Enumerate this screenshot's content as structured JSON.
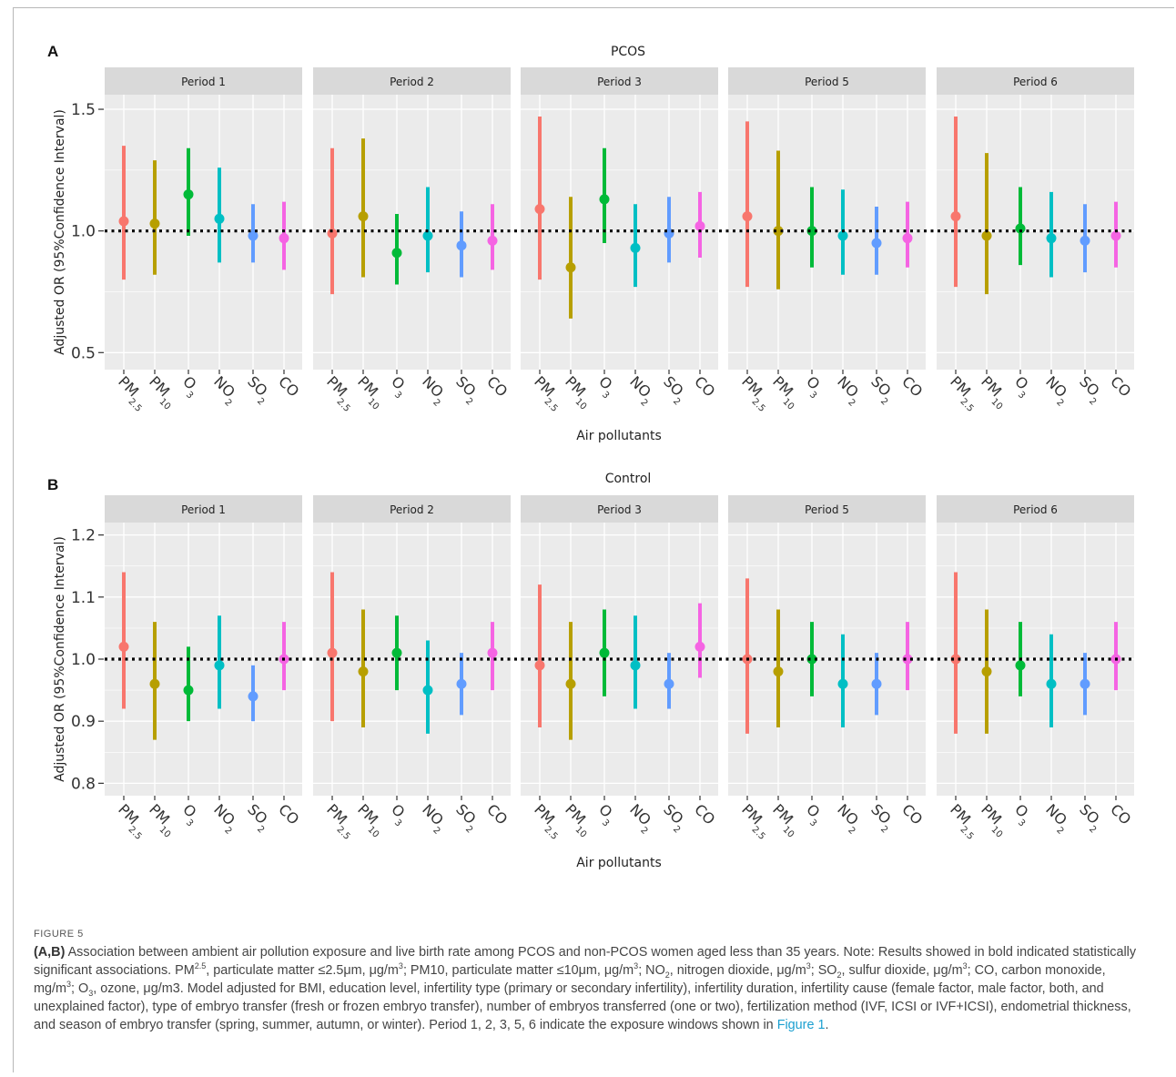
{
  "chart_data": [
    {
      "type": "scatter",
      "panel_letter": "A",
      "title": "PCOS",
      "xlabel": "Air pollutants",
      "ylabel": "Adjusted OR (95%Confidence Interval)",
      "ylim": [
        0.43,
        1.56
      ],
      "yticks": [
        0.5,
        1.0,
        1.5
      ],
      "ytick_labels": [
        "0.5",
        "1.0",
        "1.5"
      ],
      "reference_line": 1.0,
      "pollutants": [
        "PM2.5",
        "PM10",
        "O3",
        "NO2",
        "SO2",
        "CO"
      ],
      "facets": [
        {
          "name": "Period 1",
          "or": [
            1.04,
            1.03,
            1.15,
            1.05,
            0.98,
            0.97
          ],
          "lower": [
            0.8,
            0.82,
            0.98,
            0.87,
            0.87,
            0.84
          ],
          "upper": [
            1.35,
            1.29,
            1.34,
            1.26,
            1.11,
            1.12
          ]
        },
        {
          "name": "Period 2",
          "or": [
            0.99,
            1.06,
            0.91,
            0.98,
            0.94,
            0.96
          ],
          "lower": [
            0.74,
            0.81,
            0.78,
            0.83,
            0.81,
            0.84
          ],
          "upper": [
            1.34,
            1.38,
            1.07,
            1.18,
            1.08,
            1.11
          ]
        },
        {
          "name": "Period 3",
          "or": [
            1.09,
            0.85,
            1.13,
            0.93,
            0.99,
            1.02
          ],
          "lower": [
            0.8,
            0.64,
            0.95,
            0.77,
            0.87,
            0.89
          ],
          "upper": [
            1.47,
            1.14,
            1.34,
            1.11,
            1.14,
            1.16
          ]
        },
        {
          "name": "Period 5",
          "or": [
            1.06,
            1.0,
            1.0,
            0.98,
            0.95,
            0.97
          ],
          "lower": [
            0.77,
            0.76,
            0.85,
            0.82,
            0.82,
            0.85
          ],
          "upper": [
            1.45,
            1.33,
            1.18,
            1.17,
            1.1,
            1.12
          ]
        },
        {
          "name": "Period 6",
          "or": [
            1.06,
            0.98,
            1.01,
            0.97,
            0.96,
            0.98
          ],
          "lower": [
            0.77,
            0.74,
            0.86,
            0.81,
            0.83,
            0.85
          ],
          "upper": [
            1.47,
            1.32,
            1.18,
            1.16,
            1.11,
            1.12
          ]
        }
      ]
    },
    {
      "type": "scatter",
      "panel_letter": "B",
      "title": "Control",
      "xlabel": "Air pollutants",
      "ylabel": "Adjusted OR (95%Confidence Interval)",
      "ylim": [
        0.78,
        1.22
      ],
      "yticks": [
        0.8,
        0.9,
        1.0,
        1.1,
        1.2
      ],
      "ytick_labels": [
        "0.8",
        "0.9",
        "1.0",
        "1.1",
        "1.2"
      ],
      "reference_line": 1.0,
      "pollutants": [
        "PM2.5",
        "PM10",
        "O3",
        "NO2",
        "SO2",
        "CO"
      ],
      "facets": [
        {
          "name": "Period 1",
          "or": [
            1.02,
            0.96,
            0.95,
            0.99,
            0.94,
            1.0
          ],
          "lower": [
            0.92,
            0.87,
            0.9,
            0.92,
            0.9,
            0.95
          ],
          "upper": [
            1.14,
            1.06,
            1.02,
            1.07,
            0.99,
            1.06
          ]
        },
        {
          "name": "Period 2",
          "or": [
            1.01,
            0.98,
            1.01,
            0.95,
            0.96,
            1.01
          ],
          "lower": [
            0.9,
            0.89,
            0.95,
            0.88,
            0.91,
            0.95
          ],
          "upper": [
            1.14,
            1.08,
            1.07,
            1.03,
            1.01,
            1.06
          ]
        },
        {
          "name": "Period 3",
          "or": [
            0.99,
            0.96,
            1.01,
            0.99,
            0.96,
            1.02
          ],
          "lower": [
            0.89,
            0.87,
            0.94,
            0.92,
            0.92,
            0.97
          ],
          "upper": [
            1.12,
            1.06,
            1.08,
            1.07,
            1.01,
            1.09
          ]
        },
        {
          "name": "Period 5",
          "or": [
            1.0,
            0.98,
            1.0,
            0.96,
            0.96,
            1.0
          ],
          "lower": [
            0.88,
            0.89,
            0.94,
            0.89,
            0.91,
            0.95
          ],
          "upper": [
            1.13,
            1.08,
            1.06,
            1.04,
            1.01,
            1.06
          ]
        },
        {
          "name": "Period 6",
          "or": [
            1.0,
            0.98,
            0.99,
            0.96,
            0.96,
            1.0
          ],
          "lower": [
            0.88,
            0.88,
            0.94,
            0.89,
            0.91,
            0.95
          ],
          "upper": [
            1.14,
            1.08,
            1.06,
            1.04,
            1.01,
            1.06
          ]
        }
      ]
    }
  ],
  "pollutant_labels": [
    {
      "main": "PM",
      "sub": "2.5"
    },
    {
      "main": "PM",
      "sub": "10"
    },
    {
      "main": "O",
      "sub": "3"
    },
    {
      "main": "NO",
      "sub": "2"
    },
    {
      "main": "SO",
      "sub": "2"
    },
    {
      "main": "CO",
      "sub": ""
    }
  ],
  "colors": {
    "PM2.5": "#F8766D",
    "PM10": "#B79F00",
    "O3": "#00BA38",
    "NO2": "#00BFC4",
    "SO2": "#619CFF",
    "CO": "#F564E3",
    "panel_bg": "#EBEBEB",
    "strip_bg": "#D9D9D9",
    "grid": "#FFFFFF"
  },
  "caption": {
    "label": "FIGURE 5",
    "panels_ref": "(A,B)",
    "text_1": " Association between ambient air pollution exposure and live birth rate among PCOS and non-PCOS women aged less than 35 years. Note: Results showed in bold indicated statistically significant associations. PM",
    "pm_sup": "2.5",
    "text_2": ", particulate matter ≤2.5μm, μg/m",
    "sup_3a": "3",
    "text_3": "; PM10, particulate matter ≤10μm, μg/m",
    "sup_3b": "3",
    "text_4": "; NO",
    "no2_sub": "2",
    "text_5": ", nitrogen dioxide, μg/m",
    "sup_3c": "3",
    "text_6": "; SO",
    "so2_sub": "2",
    "text_7": ", sulfur dioxide, μg/m",
    "sup_3d": "3",
    "text_8": "; CO, carbon monoxide, mg/m",
    "sup_3e": "3",
    "text_9": "; O",
    "o3_sub": "3",
    "text_10": ", ozone, μg/m3. Model adjusted for BMI, education level, infertility type (primary or secondary infertility), infertility duration, infertility cause (female factor, male factor, both, and unexplained factor), type of embryo transfer (fresh or frozen embryo transfer), number of embryos transferred (one or two), fertilization method (IVF, ICSI or IVF+ICSI), endometrial thickness, and season of embryo transfer (spring, summer, autumn, or winter). Period 1, 2, 3, 5, 6 indicate the exposure windows shown in ",
    "link": "Figure 1",
    "text_end": "."
  }
}
